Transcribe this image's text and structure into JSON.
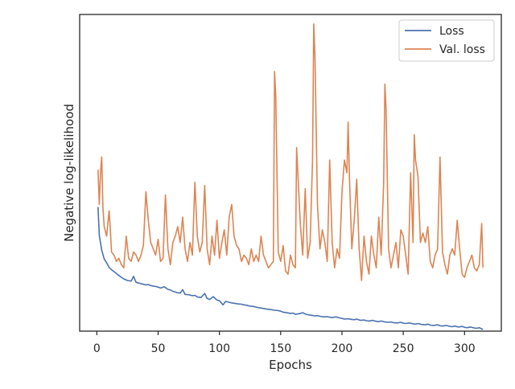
{
  "chart_data": {
    "type": "line",
    "xlabel": "Epochs",
    "ylabel": "Negative log-likelihood",
    "xlim": [
      -14,
      330
    ],
    "ylim": [
      0,
      100
    ],
    "x_ticks": [
      0,
      50,
      100,
      150,
      200,
      250,
      300
    ],
    "x_tick_labels": [
      "0",
      "50",
      "100",
      "150",
      "200",
      "250",
      "300"
    ],
    "grid": false,
    "legend_position": "top-right",
    "series": [
      {
        "name": "Loss",
        "color": "#4c72b0",
        "points": [
          [
            1,
            39.2
          ],
          [
            2,
            30.2
          ],
          [
            4,
            25.6
          ],
          [
            6,
            22.8
          ],
          [
            8,
            21.6
          ],
          [
            10,
            20.1
          ],
          [
            12,
            19.4
          ],
          [
            15,
            18.5
          ],
          [
            18,
            17.6
          ],
          [
            20,
            17.0
          ],
          [
            22,
            16.5
          ],
          [
            25,
            16.0
          ],
          [
            28,
            15.8
          ],
          [
            30,
            17.3
          ],
          [
            32,
            15.4
          ],
          [
            35,
            15.1
          ],
          [
            38,
            14.8
          ],
          [
            40,
            14.6
          ],
          [
            42,
            14.7
          ],
          [
            45,
            14.3
          ],
          [
            48,
            14.1
          ],
          [
            50,
            13.9
          ],
          [
            52,
            13.6
          ],
          [
            55,
            14.0
          ],
          [
            58,
            13.2
          ],
          [
            60,
            13.0
          ],
          [
            62,
            12.6
          ],
          [
            65,
            12.2
          ],
          [
            68,
            12.0
          ],
          [
            70,
            13.1
          ],
          [
            72,
            11.6
          ],
          [
            75,
            11.5
          ],
          [
            78,
            11.2
          ],
          [
            80,
            11.3
          ],
          [
            82,
            10.8
          ],
          [
            85,
            10.6
          ],
          [
            88,
            11.9
          ],
          [
            90,
            10.3
          ],
          [
            92,
            10.0
          ],
          [
            95,
            10.9
          ],
          [
            98,
            9.8
          ],
          [
            100,
            9.6
          ],
          [
            103,
            8.3
          ],
          [
            105,
            9.4
          ],
          [
            108,
            9.1
          ],
          [
            110,
            8.9
          ],
          [
            112,
            8.8
          ],
          [
            115,
            8.6
          ],
          [
            118,
            8.5
          ],
          [
            120,
            8.3
          ],
          [
            122,
            8.2
          ],
          [
            125,
            7.9
          ],
          [
            128,
            7.8
          ],
          [
            130,
            7.6
          ],
          [
            132,
            7.4
          ],
          [
            135,
            7.2
          ],
          [
            138,
            7.0
          ],
          [
            140,
            6.9
          ],
          [
            142,
            6.8
          ],
          [
            145,
            6.6
          ],
          [
            148,
            6.5
          ],
          [
            150,
            6.3
          ],
          [
            152,
            6.0
          ],
          [
            155,
            5.8
          ],
          [
            158,
            5.6
          ],
          [
            160,
            5.7
          ],
          [
            162,
            5.3
          ],
          [
            165,
            5.5
          ],
          [
            168,
            5.8
          ],
          [
            170,
            5.4
          ],
          [
            172,
            5.2
          ],
          [
            175,
            5.0
          ],
          [
            178,
            4.8
          ],
          [
            180,
            4.9
          ],
          [
            182,
            4.7
          ],
          [
            185,
            4.5
          ],
          [
            188,
            4.6
          ],
          [
            190,
            4.4
          ],
          [
            192,
            4.3
          ],
          [
            195,
            4.5
          ],
          [
            198,
            4.2
          ],
          [
            200,
            4.0
          ],
          [
            202,
            3.8
          ],
          [
            205,
            3.9
          ],
          [
            208,
            3.7
          ],
          [
            210,
            3.6
          ],
          [
            212,
            3.8
          ],
          [
            215,
            3.4
          ],
          [
            218,
            3.5
          ],
          [
            220,
            3.3
          ],
          [
            222,
            3.2
          ],
          [
            225,
            3.4
          ],
          [
            228,
            3.1
          ],
          [
            230,
            3.0
          ],
          [
            232,
            3.2
          ],
          [
            235,
            2.9
          ],
          [
            238,
            2.8
          ],
          [
            240,
            2.9
          ],
          [
            242,
            2.7
          ],
          [
            245,
            2.6
          ],
          [
            248,
            2.8
          ],
          [
            250,
            2.5
          ],
          [
            252,
            2.4
          ],
          [
            255,
            2.6
          ],
          [
            258,
            2.3
          ],
          [
            260,
            2.2
          ],
          [
            262,
            2.4
          ],
          [
            265,
            2.1
          ],
          [
            268,
            2.0
          ],
          [
            270,
            2.2
          ],
          [
            272,
            1.9
          ],
          [
            275,
            1.8
          ],
          [
            278,
            2.0
          ],
          [
            280,
            1.7
          ],
          [
            282,
            1.6
          ],
          [
            285,
            1.8
          ],
          [
            288,
            1.5
          ],
          [
            290,
            1.4
          ],
          [
            292,
            1.6
          ],
          [
            295,
            1.3
          ],
          [
            298,
            1.5
          ],
          [
            300,
            1.2
          ],
          [
            302,
            1.1
          ],
          [
            305,
            1.3
          ],
          [
            308,
            1.0
          ],
          [
            310,
            0.9
          ],
          [
            312,
            1.1
          ],
          [
            315,
            0.5
          ]
        ]
      },
      {
        "name": "Val. loss",
        "color": "#dd8452",
        "points": [
          [
            1,
            51
          ],
          [
            2,
            40
          ],
          [
            3,
            50
          ],
          [
            4,
            55
          ],
          [
            5,
            39
          ],
          [
            6,
            33
          ],
          [
            8,
            30
          ],
          [
            10,
            38
          ],
          [
            11,
            32
          ],
          [
            12,
            25
          ],
          [
            14,
            24
          ],
          [
            16,
            22
          ],
          [
            18,
            23
          ],
          [
            20,
            21
          ],
          [
            22,
            20
          ],
          [
            24,
            30
          ],
          [
            26,
            23
          ],
          [
            28,
            22
          ],
          [
            30,
            25
          ],
          [
            32,
            24
          ],
          [
            34,
            22
          ],
          [
            36,
            24
          ],
          [
            38,
            27
          ],
          [
            40,
            44
          ],
          [
            42,
            35
          ],
          [
            44,
            28
          ],
          [
            46,
            26
          ],
          [
            48,
            24
          ],
          [
            50,
            29
          ],
          [
            52,
            22
          ],
          [
            54,
            23
          ],
          [
            56,
            43
          ],
          [
            58,
            26
          ],
          [
            60,
            21
          ],
          [
            62,
            28
          ],
          [
            64,
            30
          ],
          [
            66,
            33
          ],
          [
            68,
            28
          ],
          [
            70,
            36
          ],
          [
            72,
            26
          ],
          [
            74,
            22
          ],
          [
            76,
            28
          ],
          [
            78,
            24
          ],
          [
            80,
            47
          ],
          [
            82,
            30
          ],
          [
            84,
            25
          ],
          [
            86,
            28
          ],
          [
            88,
            46
          ],
          [
            90,
            26
          ],
          [
            92,
            21
          ],
          [
            94,
            30
          ],
          [
            96,
            24
          ],
          [
            98,
            35
          ],
          [
            100,
            23
          ],
          [
            102,
            28
          ],
          [
            104,
            32
          ],
          [
            106,
            24
          ],
          [
            108,
            36
          ],
          [
            110,
            40
          ],
          [
            112,
            30
          ],
          [
            114,
            27
          ],
          [
            116,
            26
          ],
          [
            118,
            22
          ],
          [
            120,
            24
          ],
          [
            122,
            23
          ],
          [
            124,
            21
          ],
          [
            126,
            26
          ],
          [
            128,
            22
          ],
          [
            130,
            24
          ],
          [
            132,
            22
          ],
          [
            134,
            30
          ],
          [
            136,
            24
          ],
          [
            138,
            22
          ],
          [
            140,
            20
          ],
          [
            142,
            21
          ],
          [
            144,
            22
          ],
          [
            145,
            82
          ],
          [
            146,
            74
          ],
          [
            148,
            25
          ],
          [
            150,
            22
          ],
          [
            152,
            27
          ],
          [
            154,
            19
          ],
          [
            156,
            18
          ],
          [
            158,
            24
          ],
          [
            160,
            21
          ],
          [
            162,
            20
          ],
          [
            163,
            58
          ],
          [
            164,
            50
          ],
          [
            166,
            34
          ],
          [
            168,
            24
          ],
          [
            170,
            45
          ],
          [
            172,
            23
          ],
          [
            174,
            28
          ],
          [
            176,
            54
          ],
          [
            177,
            97
          ],
          [
            178,
            86
          ],
          [
            180,
            40
          ],
          [
            182,
            26
          ],
          [
            184,
            32
          ],
          [
            186,
            28
          ],
          [
            188,
            22
          ],
          [
            190,
            54
          ],
          [
            192,
            28
          ],
          [
            194,
            20
          ],
          [
            196,
            26
          ],
          [
            198,
            23
          ],
          [
            200,
            44
          ],
          [
            202,
            54
          ],
          [
            204,
            50
          ],
          [
            205,
            66
          ],
          [
            206,
            50
          ],
          [
            208,
            26
          ],
          [
            210,
            35
          ],
          [
            212,
            48
          ],
          [
            214,
            26
          ],
          [
            216,
            16
          ],
          [
            218,
            30
          ],
          [
            220,
            22
          ],
          [
            222,
            18
          ],
          [
            224,
            30
          ],
          [
            226,
            24
          ],
          [
            228,
            20
          ],
          [
            230,
            36
          ],
          [
            232,
            24
          ],
          [
            234,
            47
          ],
          [
            235,
            78
          ],
          [
            236,
            70
          ],
          [
            238,
            26
          ],
          [
            240,
            20
          ],
          [
            242,
            24
          ],
          [
            244,
            28
          ],
          [
            246,
            20
          ],
          [
            248,
            32
          ],
          [
            250,
            30
          ],
          [
            252,
            24
          ],
          [
            254,
            18
          ],
          [
            256,
            50
          ],
          [
            258,
            28
          ],
          [
            259,
            62
          ],
          [
            260,
            54
          ],
          [
            262,
            49
          ],
          [
            264,
            28
          ],
          [
            266,
            31
          ],
          [
            268,
            28
          ],
          [
            270,
            33
          ],
          [
            272,
            22
          ],
          [
            274,
            20
          ],
          [
            276,
            24
          ],
          [
            278,
            26
          ],
          [
            280,
            55
          ],
          [
            282,
            25
          ],
          [
            284,
            21
          ],
          [
            286,
            18
          ],
          [
            288,
            24
          ],
          [
            290,
            26
          ],
          [
            292,
            24
          ],
          [
            294,
            35
          ],
          [
            296,
            26
          ],
          [
            298,
            18
          ],
          [
            300,
            17
          ],
          [
            302,
            20
          ],
          [
            304,
            22
          ],
          [
            306,
            24
          ],
          [
            308,
            20
          ],
          [
            310,
            19
          ],
          [
            312,
            21
          ],
          [
            314,
            34
          ],
          [
            315,
            20
          ]
        ]
      }
    ]
  }
}
